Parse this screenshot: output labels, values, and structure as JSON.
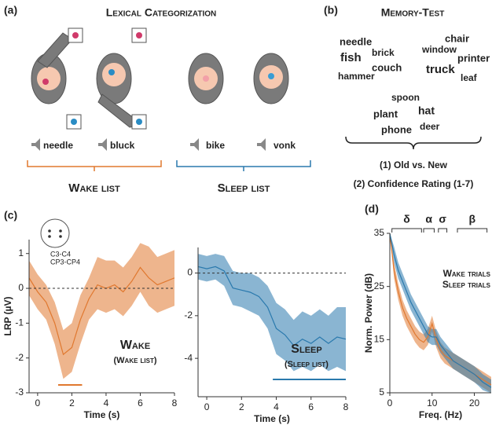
{
  "panel_a": {
    "label": "(a)",
    "title": "Lexical Categorization",
    "words": [
      "needle",
      "bluck",
      "bike",
      "vonk"
    ],
    "lists": [
      "Wake list",
      "Sleep list"
    ],
    "colors": [
      "#e0782f",
      "#2a79ad"
    ]
  },
  "panel_b": {
    "label": "(b)",
    "title": "Memory-Test",
    "words": [
      {
        "text": "needle",
        "color": "#e0782f"
      },
      {
        "text": "brick",
        "color": "#e0782f"
      },
      {
        "text": "fish",
        "color": "#e0782f"
      },
      {
        "text": "couch",
        "color": "#e0782f"
      },
      {
        "text": "hammer",
        "color": "#e0782f"
      },
      {
        "text": "chair",
        "color": "#2a79ad"
      },
      {
        "text": "window",
        "color": "#2a79ad"
      },
      {
        "text": "printer",
        "color": "#2a79ad"
      },
      {
        "text": "truck",
        "color": "#2a79ad"
      },
      {
        "text": "leaf",
        "color": "#2a79ad"
      },
      {
        "text": "spoon",
        "color": "#8c8c8c"
      },
      {
        "text": "hat",
        "color": "#8c8c8c"
      },
      {
        "text": "plant",
        "color": "#8c8c8c"
      },
      {
        "text": "phone",
        "color": "#8c8c8c"
      },
      {
        "text": "deer",
        "color": "#8c8c8c"
      }
    ],
    "tasks": [
      "(1) Old vs. New",
      "(2) Confidence Rating (1-7)"
    ]
  },
  "chart_data": [
    {
      "type": "line",
      "label": "(c)",
      "xlabel": "Time (s)",
      "ylabel": "LRP (µV)",
      "annotations": [
        "C3-C4",
        "CP3-CP4"
      ],
      "xlim": [
        -0.5,
        8
      ],
      "xticks": [
        0,
        2,
        4,
        6,
        8
      ],
      "ylim": [
        -3,
        1.4
      ],
      "yticks": [
        -3,
        -2,
        -1,
        0,
        1
      ],
      "hline": 0,
      "legend": "lower right",
      "x": [
        -0.5,
        0,
        0.5,
        1,
        1.5,
        2,
        2.5,
        3,
        3.5,
        4,
        4.5,
        5,
        5.5,
        6,
        6.5,
        7,
        7.5,
        8
      ],
      "series": [
        {
          "name": "Wake",
          "note": "(Wake list)",
          "color": "#e0782f",
          "values": [
            0.3,
            -0.1,
            -0.4,
            -1.0,
            -1.9,
            -1.7,
            -0.9,
            -0.3,
            0.1,
            0.0,
            0.1,
            -0.1,
            0.2,
            0.6,
            0.3,
            0.1,
            0.2,
            0.3
          ],
          "lower": [
            -0.2,
            -0.6,
            -0.9,
            -1.6,
            -2.6,
            -2.4,
            -1.6,
            -0.9,
            -0.6,
            -0.7,
            -0.6,
            -0.8,
            -0.5,
            -0.1,
            -0.5,
            -0.7,
            -0.6,
            -0.5
          ],
          "upper": [
            0.8,
            0.4,
            0.1,
            -0.4,
            -1.2,
            -1.0,
            -0.2,
            0.3,
            0.9,
            0.8,
            0.8,
            0.6,
            0.9,
            1.3,
            1.2,
            0.9,
            1.0,
            1.1
          ],
          "significance": [
            1.2,
            2.6
          ]
        }
      ]
    },
    {
      "type": "line",
      "xlabel": "Time (s)",
      "xlim": [
        -0.5,
        8
      ],
      "xticks": [
        0,
        2,
        4,
        6,
        8
      ],
      "ylim": [
        -5.8,
        1.2
      ],
      "yticks": [
        -4,
        -2,
        0
      ],
      "hline": 0,
      "legend": "lower right",
      "x": [
        -0.5,
        0,
        0.5,
        1,
        1.5,
        2,
        2.5,
        3,
        3.5,
        4,
        4.5,
        5,
        5.5,
        6,
        6.5,
        7,
        7.5,
        8
      ],
      "series": [
        {
          "name": "Sleep",
          "note": "(Sleep list)",
          "color": "#2a79ad",
          "values": [
            0.3,
            0.2,
            0.3,
            0.1,
            -0.7,
            -0.8,
            -0.9,
            -1.1,
            -1.6,
            -2.6,
            -2.9,
            -3.4,
            -3.1,
            -3.3,
            -3.0,
            -3.3,
            -3.0,
            -3.1
          ],
          "lower": [
            -0.3,
            -0.4,
            -0.3,
            -0.6,
            -1.5,
            -1.6,
            -1.8,
            -2.0,
            -2.6,
            -3.8,
            -4.1,
            -4.6,
            -4.4,
            -4.6,
            -4.3,
            -4.6,
            -4.4,
            -4.6
          ],
          "upper": [
            0.9,
            0.8,
            0.9,
            0.8,
            0.1,
            0.0,
            0.0,
            -0.2,
            -0.6,
            -1.4,
            -1.7,
            -2.2,
            -1.8,
            -2.0,
            -1.7,
            -2.0,
            -1.6,
            -1.6
          ],
          "significance": [
            3.8,
            8
          ]
        }
      ]
    },
    {
      "type": "line",
      "label": "(d)",
      "xlabel": "Freq. (Hz)",
      "ylabel": "Norm. Power (dB)",
      "xlim": [
        0,
        24
      ],
      "xticks": [
        0,
        10,
        20
      ],
      "ylim": [
        5,
        35
      ],
      "yticks": [
        5,
        15,
        25,
        35
      ],
      "legend": "upper right",
      "bands": [
        {
          "name": "δ",
          "range": [
            0.5,
            7.5
          ]
        },
        {
          "name": "α",
          "range": [
            8,
            10.5
          ]
        },
        {
          "name": "σ",
          "range": [
            11.5,
            13.5
          ]
        },
        {
          "name": "β",
          "range": [
            16,
            23
          ]
        }
      ],
      "x": [
        0,
        1,
        2,
        3,
        4,
        5,
        6,
        7,
        8,
        9,
        10,
        11,
        12,
        13,
        14,
        15,
        16,
        17,
        18,
        19,
        20,
        21,
        22,
        23,
        24
      ],
      "series": [
        {
          "name": "Wake trials",
          "color": "#e0782f",
          "values": [
            35,
            28,
            24,
            21,
            19,
            17.5,
            16,
            15,
            14.5,
            15.5,
            18,
            15,
            13,
            12,
            11.5,
            11,
            10.5,
            10,
            9.5,
            9,
            8.5,
            8,
            7.5,
            7,
            6.5
          ],
          "lower": [
            35,
            26.5,
            22.5,
            19.5,
            17.5,
            16,
            14.5,
            13.5,
            13,
            14,
            16.5,
            13.5,
            11.5,
            10.5,
            10,
            9.5,
            9,
            8.5,
            8,
            7.5,
            7,
            6.5,
            6,
            5.5,
            5
          ],
          "upper": [
            35,
            29.5,
            25.5,
            22.5,
            20.5,
            19,
            17.5,
            16.5,
            16,
            17,
            19.5,
            16.5,
            14.5,
            13.5,
            13,
            12.5,
            12,
            11.5,
            11,
            10.5,
            10,
            9.5,
            9,
            8.5,
            8
          ]
        },
        {
          "name": "Sleep trials",
          "color": "#2a79ad",
          "values": [
            35,
            31,
            28,
            26,
            24,
            22,
            20.5,
            19,
            17.5,
            16,
            15.5,
            15.5,
            14,
            13,
            12,
            11,
            10.5,
            10,
            9.5,
            9,
            8.5,
            7.8,
            7,
            6.5,
            6
          ],
          "lower": [
            35,
            29.5,
            26.5,
            24.5,
            22.5,
            20.5,
            19,
            17.5,
            16,
            14.5,
            14,
            14,
            12.5,
            11.5,
            10.5,
            9.5,
            9,
            8.5,
            8,
            7.5,
            7,
            6.3,
            5.5,
            5.2,
            5
          ],
          "upper": [
            35,
            32.5,
            29.5,
            27.5,
            25.5,
            23.5,
            22,
            20.5,
            19,
            17.5,
            17,
            17,
            15.5,
            14.5,
            13.5,
            12.5,
            12,
            11.5,
            11,
            10.5,
            10,
            9.3,
            8.5,
            8,
            7.5
          ]
        }
      ]
    }
  ]
}
